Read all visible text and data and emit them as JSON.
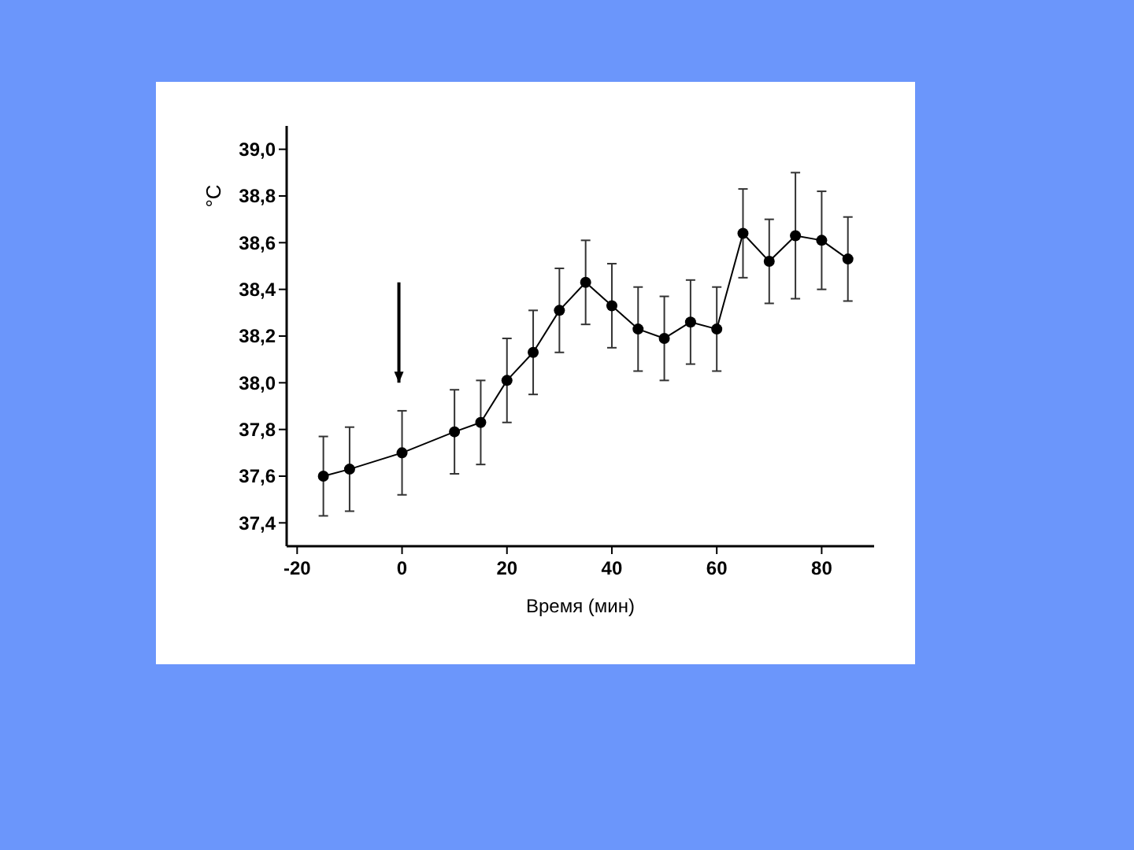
{
  "chart_data": {
    "type": "line",
    "xlabel": "Время (мин)",
    "ylabel": "°C",
    "x": [
      -15,
      -10,
      0,
      10,
      15,
      20,
      25,
      30,
      35,
      40,
      45,
      50,
      55,
      60,
      65,
      70,
      75,
      80,
      85
    ],
    "series": [
      {
        "color": "#000000",
        "values": [
          37.6,
          37.63,
          37.7,
          37.79,
          37.83,
          38.01,
          38.13,
          38.31,
          38.43,
          38.33,
          38.23,
          38.19,
          38.26,
          38.23,
          38.64,
          38.52,
          38.63,
          38.61,
          38.53
        ],
        "errors": [
          0.17,
          0.18,
          0.18,
          0.18,
          0.18,
          0.18,
          0.18,
          0.18,
          0.18,
          0.18,
          0.18,
          0.18,
          0.18,
          0.18,
          0.19,
          0.18,
          0.27,
          0.21,
          0.18
        ]
      }
    ],
    "xlim": [
      -22,
      90
    ],
    "xticks": [
      -20,
      0,
      20,
      40,
      60,
      80
    ],
    "ylim": [
      37.3,
      39.1
    ],
    "yticks": [
      {
        "value": 37.4,
        "label": "37,4"
      },
      {
        "value": 37.6,
        "label": "37,6"
      },
      {
        "value": 37.8,
        "label": "37,8"
      },
      {
        "value": 38.0,
        "label": "38,0"
      },
      {
        "value": 38.2,
        "label": "38,2"
      },
      {
        "value": 38.4,
        "label": "38,4"
      },
      {
        "value": 38.6,
        "label": "38,6"
      },
      {
        "value": 38.8,
        "label": "38,8"
      },
      {
        "value": 39.0,
        "label": "39,0"
      }
    ],
    "grid": false,
    "marker": "circle",
    "line_style": "solid"
  }
}
